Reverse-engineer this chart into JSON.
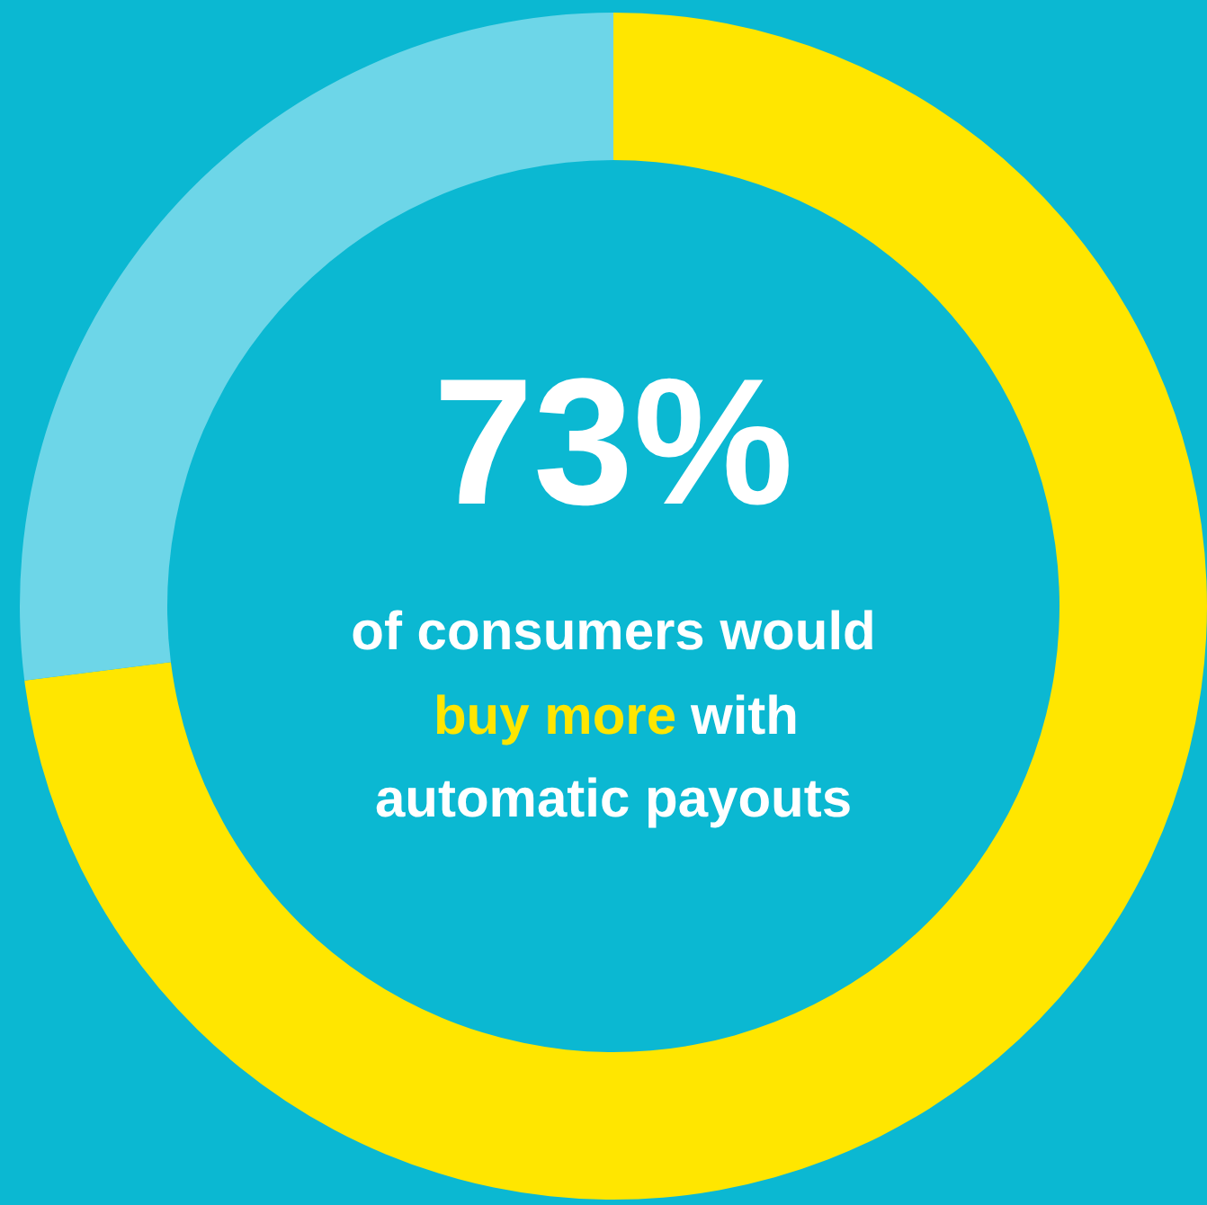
{
  "chart_data": {
    "type": "donut",
    "categories": [
      null,
      null
    ],
    "values": [
      73,
      27
    ],
    "colors": [
      "#ffe600",
      "#6dd6e8"
    ],
    "value_labels": [
      "73%",
      null
    ],
    "annotations": [
      "of consumers would",
      "buy more",
      "with",
      "automatic payouts"
    ]
  }
}
